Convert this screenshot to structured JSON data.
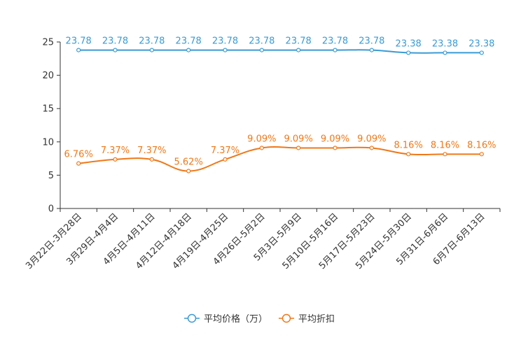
{
  "chart_data": {
    "type": "line",
    "title": "",
    "xlabel": "",
    "ylabel": "",
    "ylim": [
      0,
      25
    ],
    "yticks": [
      0,
      5,
      10,
      15,
      20,
      25
    ],
    "grid": false,
    "legend_position": "bottom-center",
    "categories": [
      "3月22日-3月28日",
      "3月29日-4月4日",
      "4月5日-4月11日",
      "4月12日-4月18日",
      "4月19日-4月25日",
      "4月26日-5月2日",
      "5月3日-5月9日",
      "5月10日-5月16日",
      "5月17日-5月23日",
      "5月24日-5月30日",
      "5月31日-6月6日",
      "6月7日-6月13日"
    ],
    "series": [
      {
        "name": "平均价格（万）",
        "color": "#3a9bd5",
        "values": [
          23.78,
          23.78,
          23.78,
          23.78,
          23.78,
          23.78,
          23.78,
          23.78,
          23.78,
          23.38,
          23.38,
          23.38
        ],
        "labels": [
          "23.78",
          "23.78",
          "23.78",
          "23.78",
          "23.78",
          "23.78",
          "23.78",
          "23.78",
          "23.78",
          "23.38",
          "23.38",
          "23.38"
        ]
      },
      {
        "name": "平均折扣",
        "color": "#f07818",
        "values": [
          6.76,
          7.37,
          7.37,
          5.62,
          7.37,
          9.09,
          9.09,
          9.09,
          9.09,
          8.16,
          8.16,
          8.16
        ],
        "labels": [
          "6.76%",
          "7.37%",
          "7.37%",
          "5.62%",
          "7.37%",
          "9.09%",
          "9.09%",
          "9.09%",
          "9.09%",
          "8.16%",
          "8.16%",
          "8.16%"
        ]
      }
    ]
  }
}
